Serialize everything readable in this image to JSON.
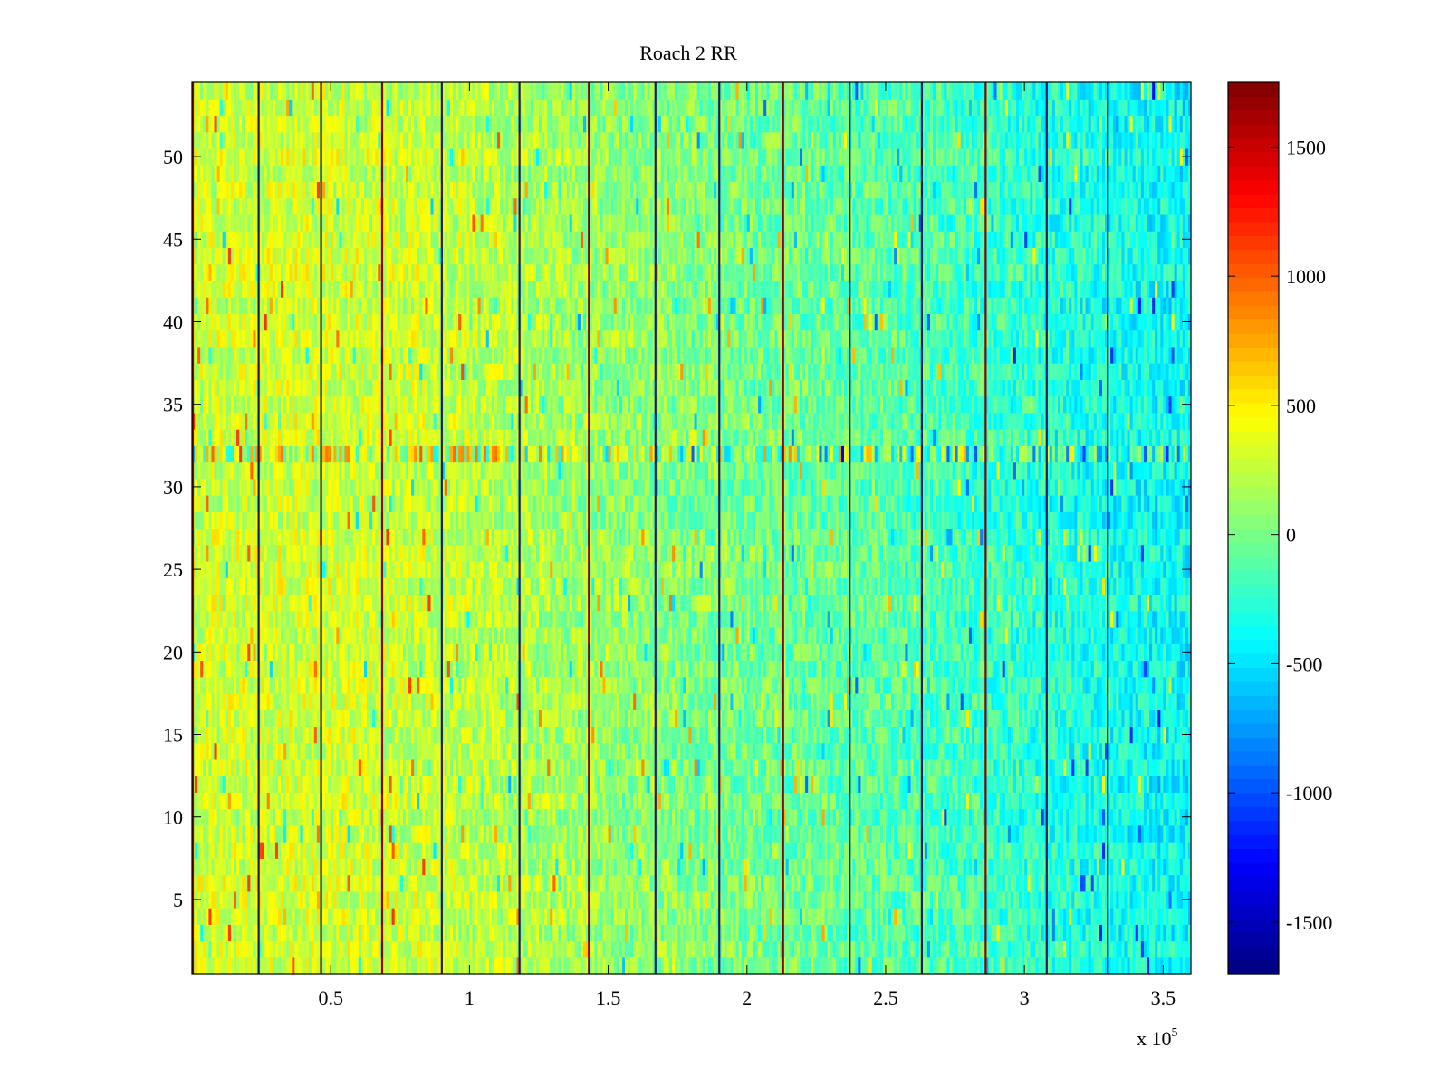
{
  "chart_data": {
    "type": "heatmap",
    "title": "Roach 2 RR",
    "xlabel": "",
    "ylabel": "",
    "x_multiplier_label": "x 10",
    "x_multiplier_exponent": "5",
    "xlim": [
      0,
      3.6
    ],
    "ylim": [
      0.5,
      54.5
    ],
    "x_ticks": [
      0.5,
      1,
      1.5,
      2,
      2.5,
      3,
      3.5
    ],
    "x_tick_labels": [
      "0.5",
      "1",
      "1.5",
      "2",
      "2.5",
      "3",
      "3.5"
    ],
    "y_ticks": [
      5,
      10,
      15,
      20,
      25,
      30,
      35,
      40,
      45,
      50
    ],
    "y_tick_labels": [
      "5",
      "10",
      "15",
      "20",
      "25",
      "30",
      "35",
      "40",
      "45",
      "50"
    ],
    "rows": 54,
    "colormap": "jet",
    "colorbar": {
      "range": [
        -1700,
        1750
      ],
      "ticks": [
        -1500,
        -1000,
        -500,
        0,
        500,
        1000,
        1500
      ],
      "tick_labels": [
        "-1500",
        "-1000",
        "-500",
        "0",
        "500",
        "1000",
        "1500"
      ]
    },
    "value_trend": {
      "x": [
        0,
        0.5,
        1,
        1.5,
        2,
        2.5,
        3,
        3.6
      ],
      "mean": [
        300,
        320,
        250,
        100,
        0,
        -100,
        -250,
        -400
      ]
    },
    "spike_columns_x": [
      0.003,
      0.24,
      0.465,
      0.685,
      0.9,
      1.18,
      1.43,
      1.67,
      1.9,
      2.13,
      2.37,
      2.63,
      2.86,
      3.08,
      3.3
    ],
    "hot_row": 32
  }
}
